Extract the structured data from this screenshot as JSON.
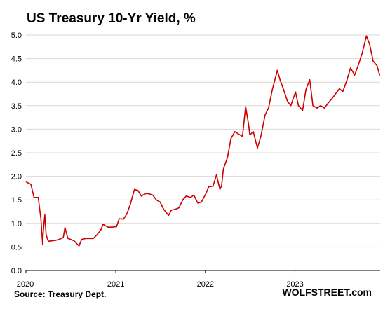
{
  "chart_data": {
    "type": "line",
    "title": "US Treasury 10-Yr Yield, %",
    "xlabel": "",
    "ylabel": "",
    "ylim": [
      0,
      5
    ],
    "y_ticks": [
      "0.0",
      "0.5",
      "1.0",
      "1.5",
      "2.0",
      "2.5",
      "3.0",
      "3.5",
      "4.0",
      "4.5",
      "5.0"
    ],
    "x_ticks": [
      "2020",
      "2021",
      "2022",
      "2023"
    ],
    "grid": "horizontal",
    "source": "Source: Treasury Dept.",
    "credit": "WOLFSTREET.com",
    "line_color": "#cc0000",
    "series": [
      {
        "x": [
          "2020-01-02",
          "2020-01-21",
          "2020-02-03",
          "2020-02-20",
          "2020-03-02",
          "2020-03-09",
          "2020-03-12",
          "2020-03-18",
          "2020-03-23",
          "2020-04-01",
          "2020-04-15",
          "2020-05-01",
          "2020-05-15",
          "2020-06-01",
          "2020-06-08",
          "2020-06-20",
          "2020-07-01",
          "2020-07-15",
          "2020-08-04",
          "2020-08-15",
          "2020-09-01",
          "2020-09-15",
          "2020-10-01",
          "2020-10-15",
          "2020-11-01",
          "2020-11-10",
          "2020-12-01",
          "2020-12-15",
          "2021-01-04",
          "2021-01-15",
          "2021-02-01",
          "2021-02-15",
          "2021-03-01",
          "2021-03-18",
          "2021-04-01",
          "2021-04-15",
          "2021-05-01",
          "2021-05-15",
          "2021-06-01",
          "2021-06-15",
          "2021-07-01",
          "2021-07-15",
          "2021-08-04",
          "2021-08-15",
          "2021-09-01",
          "2021-09-15",
          "2021-10-01",
          "2021-10-15",
          "2021-11-01",
          "2021-11-15",
          "2021-12-01",
          "2021-12-15",
          "2022-01-03",
          "2022-01-15",
          "2022-02-01",
          "2022-02-15",
          "2022-03-01",
          "2022-03-08",
          "2022-03-15",
          "2022-04-01",
          "2022-04-15",
          "2022-05-01",
          "2022-05-15",
          "2022-06-01",
          "2022-06-14",
          "2022-06-25",
          "2022-07-01",
          "2022-07-15",
          "2022-08-01",
          "2022-08-15",
          "2022-09-01",
          "2022-09-15",
          "2022-10-01",
          "2022-10-21",
          "2022-11-01",
          "2022-11-15",
          "2022-12-01",
          "2022-12-15",
          "2023-01-03",
          "2023-01-15",
          "2023-02-01",
          "2023-02-15",
          "2023-03-02",
          "2023-03-15",
          "2023-04-01",
          "2023-04-15",
          "2023-05-01",
          "2023-05-15",
          "2023-06-01",
          "2023-06-15",
          "2023-07-01",
          "2023-07-15",
          "2023-08-01",
          "2023-08-15",
          "2023-09-01",
          "2023-09-15",
          "2023-10-01",
          "2023-10-19",
          "2023-11-01",
          "2023-11-15",
          "2023-12-01",
          "2023-12-12"
        ],
        "values": [
          1.88,
          1.83,
          1.55,
          1.55,
          1.1,
          0.55,
          0.85,
          1.18,
          0.76,
          0.62,
          0.63,
          0.64,
          0.66,
          0.7,
          0.91,
          0.68,
          0.66,
          0.63,
          0.52,
          0.66,
          0.68,
          0.68,
          0.68,
          0.75,
          0.86,
          0.98,
          0.92,
          0.92,
          0.93,
          1.1,
          1.09,
          1.2,
          1.4,
          1.72,
          1.7,
          1.58,
          1.63,
          1.63,
          1.6,
          1.5,
          1.45,
          1.3,
          1.17,
          1.28,
          1.3,
          1.33,
          1.5,
          1.58,
          1.55,
          1.6,
          1.43,
          1.45,
          1.63,
          1.78,
          1.79,
          2.03,
          1.72,
          1.8,
          2.15,
          2.4,
          2.8,
          2.95,
          2.9,
          2.85,
          3.48,
          3.13,
          2.88,
          2.95,
          2.6,
          2.85,
          3.3,
          3.45,
          3.85,
          4.25,
          4.05,
          3.85,
          3.6,
          3.5,
          3.79,
          3.5,
          3.4,
          3.85,
          4.05,
          3.5,
          3.45,
          3.5,
          3.45,
          3.55,
          3.65,
          3.75,
          3.86,
          3.8,
          4.05,
          4.3,
          4.15,
          4.35,
          4.6,
          4.98,
          4.8,
          4.45,
          4.35,
          4.15
        ]
      }
    ]
  }
}
